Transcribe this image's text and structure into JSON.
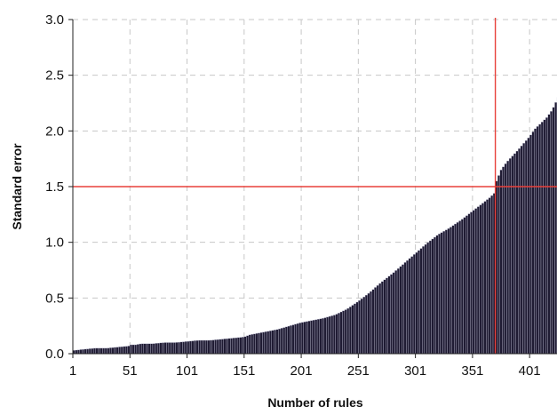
{
  "chart_data": {
    "type": "bar",
    "title": "",
    "xlabel": "Number of rules",
    "ylabel": "Standard error",
    "ylim": [
      0,
      3.0
    ],
    "xlim": [
      1,
      425
    ],
    "yticks": [
      "0.0",
      "0.5",
      "1.0",
      "1.5",
      "2.0",
      "2.5",
      "3.0"
    ],
    "xticks": [
      "1",
      "51",
      "101",
      "151",
      "201",
      "251",
      "301",
      "351",
      "401"
    ],
    "grid": true,
    "reference_lines": {
      "horizontal_y": 1.5,
      "vertical_x": 371
    },
    "bar_color": "#1f1b33",
    "bar_edge_color": "#c8c8dc",
    "reference_line_color": "#e8403a",
    "series": [
      {
        "x": [
          1,
          10,
          20,
          30,
          40,
          50,
          51,
          55,
          60,
          70,
          80,
          90,
          100,
          110,
          120,
          130,
          140,
          150,
          155,
          160,
          170,
          180,
          190,
          200,
          210,
          220,
          230,
          240,
          250,
          260,
          270,
          280,
          290,
          300,
          310,
          320,
          330,
          340,
          350,
          360,
          365,
          370,
          371,
          375,
          380,
          390,
          400,
          405,
          410,
          415,
          420,
          425
        ],
        "values": [
          0.03,
          0.04,
          0.05,
          0.05,
          0.06,
          0.07,
          0.08,
          0.08,
          0.09,
          0.09,
          0.1,
          0.1,
          0.11,
          0.12,
          0.12,
          0.13,
          0.14,
          0.15,
          0.17,
          0.18,
          0.2,
          0.22,
          0.25,
          0.28,
          0.3,
          0.32,
          0.35,
          0.4,
          0.47,
          0.55,
          0.64,
          0.72,
          0.81,
          0.9,
          0.99,
          1.07,
          1.13,
          1.2,
          1.28,
          1.36,
          1.4,
          1.45,
          1.55,
          1.65,
          1.72,
          1.83,
          1.95,
          2.02,
          2.07,
          2.12,
          2.19,
          2.3
        ]
      }
    ]
  }
}
